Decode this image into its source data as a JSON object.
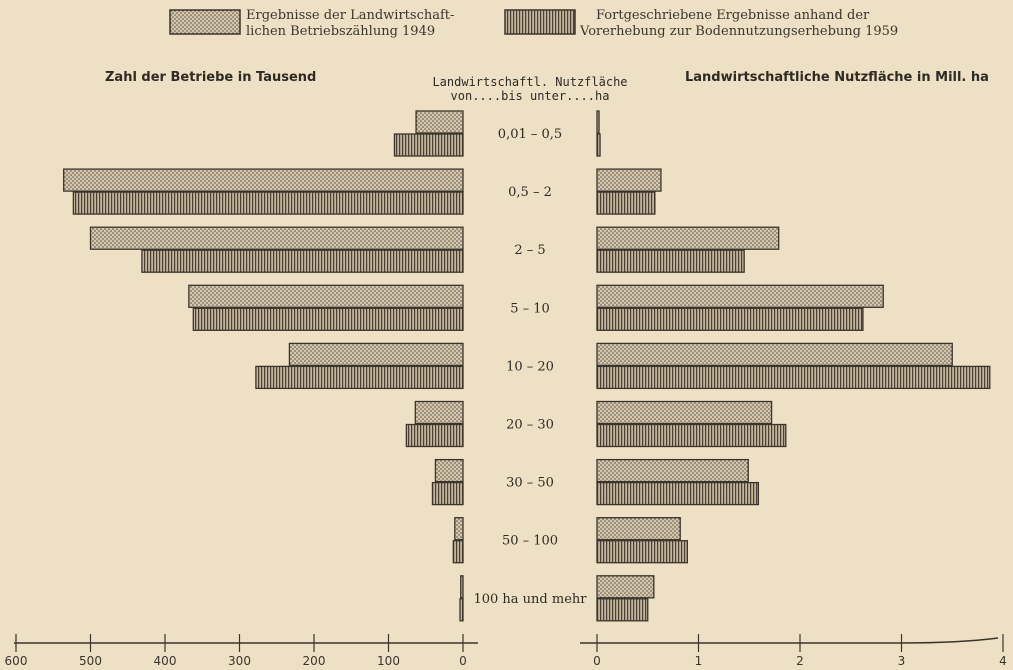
{
  "legend": {
    "dotted_line1": "Ergebnisse der Landwirtschaft-",
    "dotted_line2": "lichen Betriebszählung 1949",
    "striped_line1": "Fortgeschriebene Ergebnisse anhand der",
    "striped_line2": "Vorerhebung zur Bodennutzungserhebung 1959"
  },
  "left_title": "Zahl der Betriebe in Tausend",
  "right_title": "Landwirtschaftliche Nutzfläche in Mill. ha",
  "center_header_line1": "Landwirtschaftl. Nutzfläche",
  "center_header_line2": "von....bis unter....ha",
  "colors": {
    "background": "#eee0c4",
    "ink": "#3a342c",
    "bar_1949": "#d4c7ad",
    "bar_1959": "#b5a58e"
  },
  "chart_data": [
    {
      "type": "bar",
      "orientation": "horizontal",
      "direction": "leftward",
      "title": "Zahl der Betriebe in Tausend",
      "categories": [
        "0,01 – 0,5",
        "0,5 – 2",
        "2 – 5",
        "5 – 10",
        "10 – 20",
        "20 – 30",
        "30 – 50",
        "50 – 100",
        "100 ha und mehr"
      ],
      "series": [
        {
          "name": "Ergebnisse der Landwirtschaftlichen Betriebszählung 1949",
          "values": [
            63,
            536,
            500,
            368,
            233,
            64,
            37,
            11,
            3
          ]
        },
        {
          "name": "Fortgeschriebene Ergebnisse anhand der Vorerhebung zur Bodennutzungserhebung 1959",
          "values": [
            92,
            523,
            431,
            362,
            278,
            76,
            41,
            13,
            4
          ]
        }
      ],
      "xlim": [
        0,
        600
      ],
      "ticks": [
        "600",
        "500",
        "400",
        "300",
        "200",
        "100",
        "0"
      ]
    },
    {
      "type": "bar",
      "orientation": "horizontal",
      "direction": "rightward",
      "title": "Landwirtschaftliche Nutzfläche in Mill. ha",
      "categories": [
        "0,01 – 0,5",
        "0,5 – 2",
        "2 – 5",
        "5 – 10",
        "10 – 20",
        "20 – 30",
        "30 – 50",
        "50 – 100",
        "100 ha und mehr"
      ],
      "series": [
        {
          "name": "Ergebnisse der Landwirtschaftlichen Betriebszählung 1949",
          "values": [
            0.02,
            0.63,
            1.79,
            2.82,
            3.5,
            1.72,
            1.49,
            0.82,
            0.56
          ]
        },
        {
          "name": "Fortgeschriebene Ergebnisse anhand der Vorerhebung zur Bodennutzungserhebung 1959",
          "values": [
            0.03,
            0.57,
            1.45,
            2.62,
            3.87,
            1.86,
            1.59,
            0.89,
            0.5
          ]
        }
      ],
      "xlim": [
        0,
        4
      ],
      "ticks": [
        "0",
        "1",
        "2",
        "3",
        "4"
      ]
    }
  ]
}
